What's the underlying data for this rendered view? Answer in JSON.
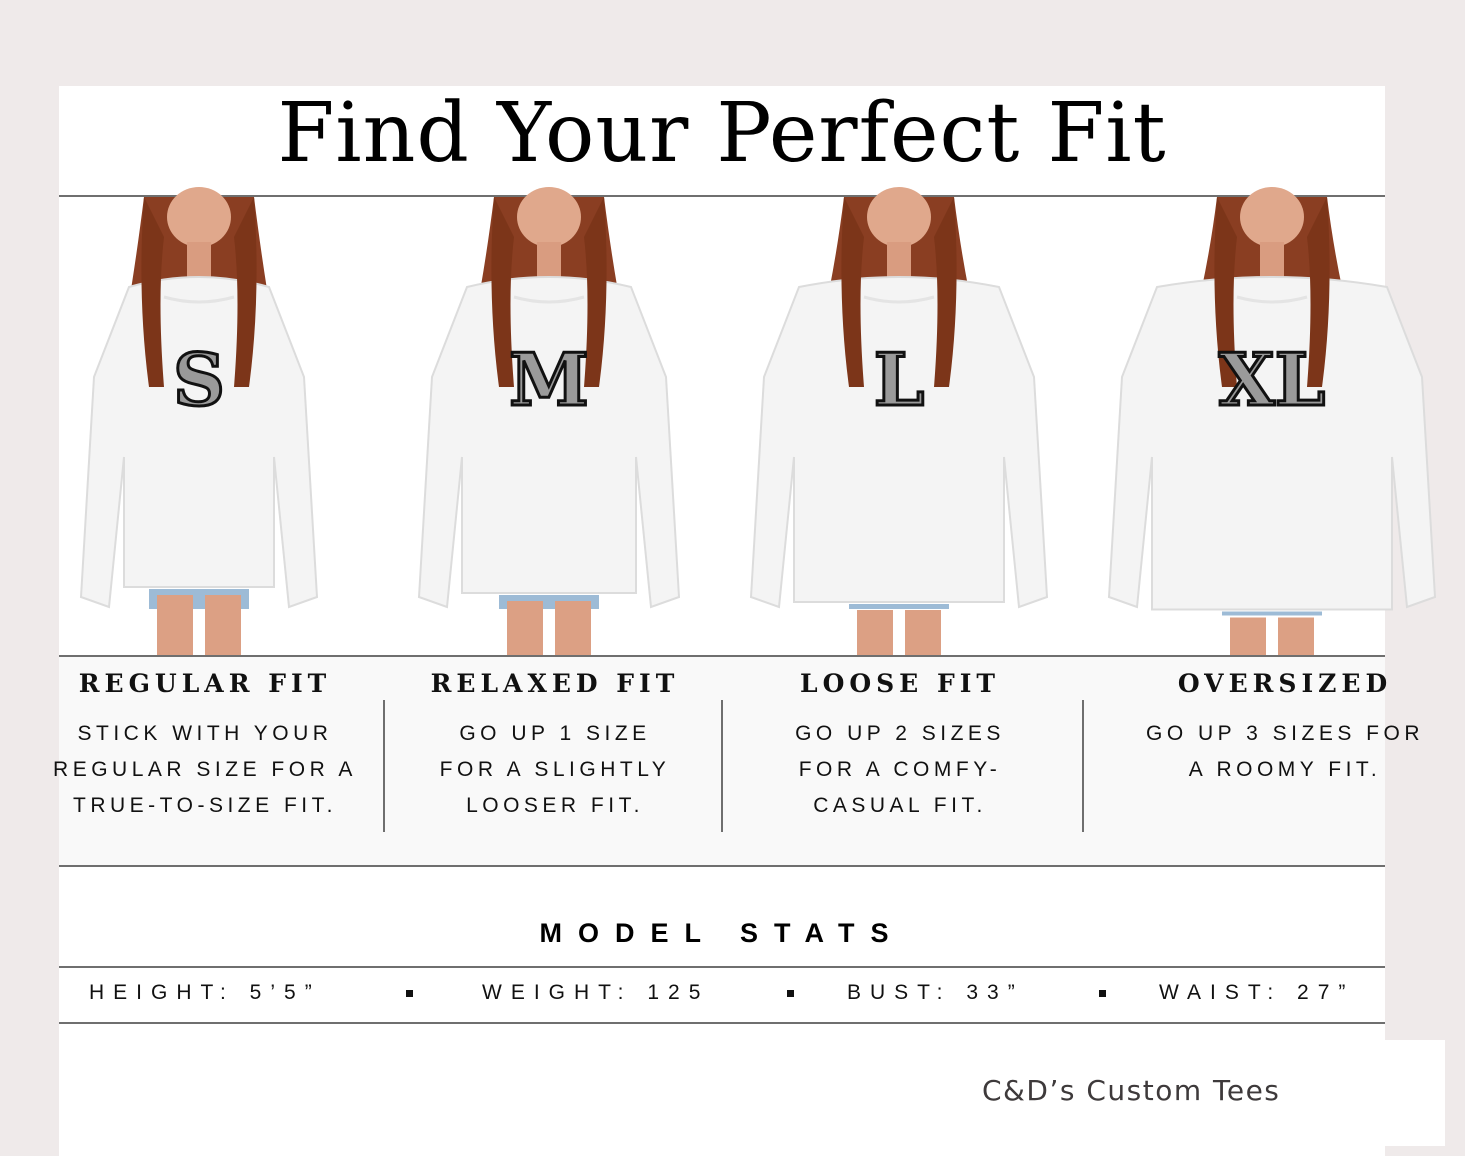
{
  "title": "Find Your Perfect Fit",
  "sizes": [
    {
      "letter": "S",
      "fit": "REGULAR FIT",
      "lines": [
        "STICK WITH YOUR",
        "REGULAR SIZE FOR A",
        "TRUE-TO-SIZE FIT."
      ]
    },
    {
      "letter": "M",
      "fit": "RELAXED FIT",
      "lines": [
        "GO UP 1 SIZE",
        "FOR A SLIGHTLY",
        "LOOSER FIT."
      ]
    },
    {
      "letter": "L",
      "fit": "LOOSE FIT",
      "lines": [
        "GO UP 2 SIZES",
        "FOR A COMFY-",
        "CASUAL FIT."
      ]
    },
    {
      "letter": "XL",
      "fit": "OVERSIZED",
      "lines": [
        "GO UP 3 SIZES FOR",
        "A ROOMY FIT."
      ]
    }
  ],
  "model_stats": {
    "title": "MODEL STATS",
    "items": [
      "HEIGHT: 5’5”",
      "WEIGHT: 125",
      "BUST: 33”",
      "WAIST: 27”"
    ]
  },
  "brand": "C&D’s Custom Tees",
  "colors": {
    "background": "#efeaea",
    "text": "#111111",
    "divider": "#6f6f6f",
    "panel": "#f9f9f9",
    "brand": "#3e3a3b"
  }
}
